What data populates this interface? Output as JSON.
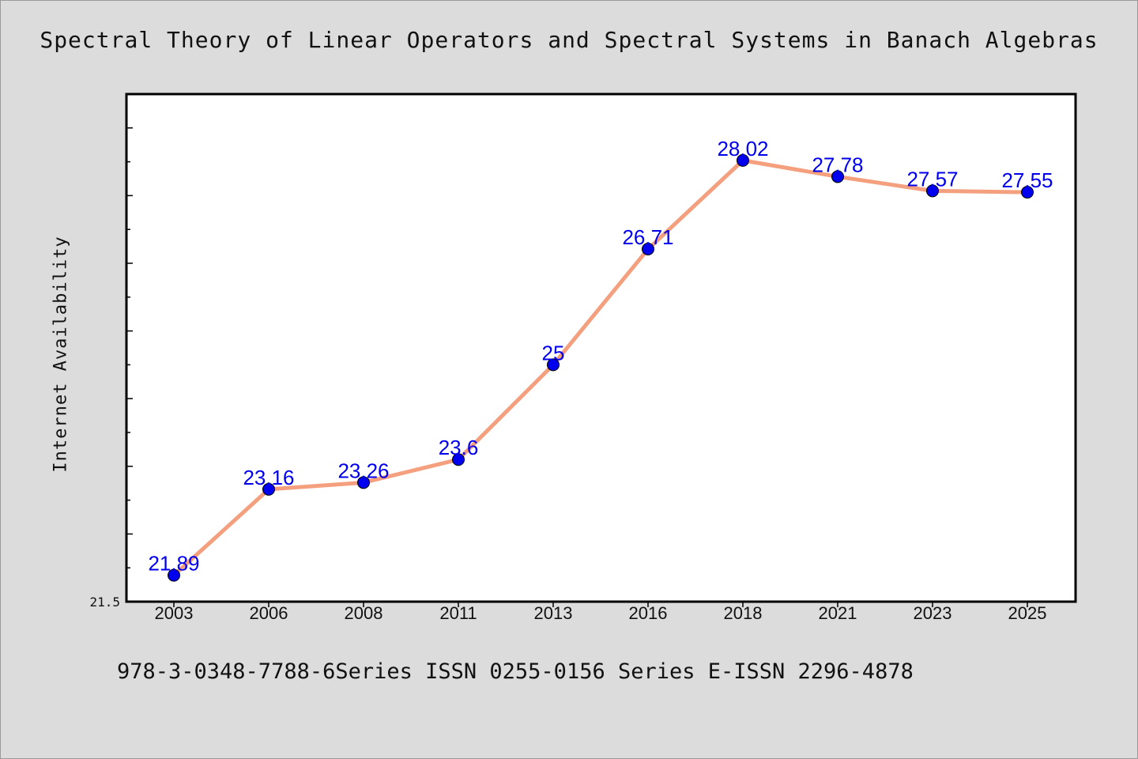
{
  "footer_note": "978-3-0348-7788-6Series ISSN 0255-0156 Series E-ISSN 2296-4878",
  "chart_data": {
    "type": "line",
    "title": "Spectral Theory of Linear Operators and Spectral Systems in Banach Algebras",
    "xlabel": "",
    "ylabel": "Internet Availability",
    "categories": [
      "2003",
      "2006",
      "2008",
      "2011",
      "2013",
      "2016",
      "2018",
      "2021",
      "2023",
      "2025"
    ],
    "series": [
      {
        "values": [
          21.89,
          23.16,
          23.26,
          23.6,
          25,
          26.71,
          28.02,
          27.78,
          27.57,
          27.55
        ],
        "data_labels": [
          "21.89",
          "23.16",
          "23.26",
          "23.6",
          "25",
          "26.71",
          "28.02",
          "27.78",
          "27.57",
          "27.55"
        ]
      }
    ],
    "ylim": [
      21.5,
      29.0
    ],
    "yticks_labeled": [
      "21.5"
    ],
    "grid": false,
    "legend": "none",
    "colors": {
      "line": "#f4a07f",
      "marker": "#0000ee",
      "label": "#0000ee",
      "background": "#dcdcdc",
      "plot_background": "#ffffff"
    }
  }
}
